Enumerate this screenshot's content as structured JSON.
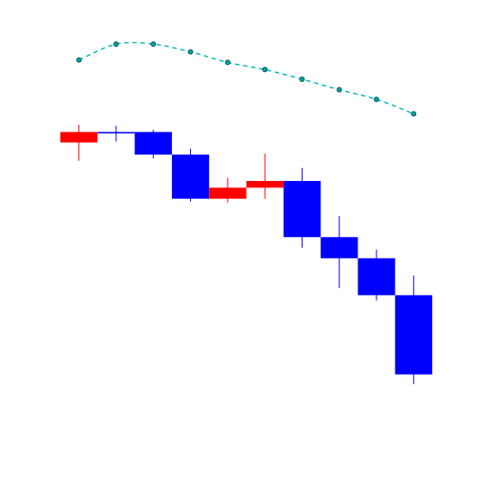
{
  "chart_data": {
    "type": "candlestick",
    "title": "",
    "xlabel": "",
    "ylabel": "",
    "axes_visible": false,
    "grid": false,
    "ylim": [
      0,
      100
    ],
    "colors": {
      "up": "#ff0000",
      "down": "#0000ff",
      "overlay_line": "#00b3b3",
      "overlay_marker_fill": "#00a0a0",
      "overlay_marker_edge": "#004d4d"
    },
    "candles": [
      {
        "open": 70.3,
        "close": 72.5,
        "high": 74.0,
        "low": 66.5
      },
      {
        "open": 72.5,
        "close": 72.2,
        "high": 73.8,
        "low": 70.5
      },
      {
        "open": 72.5,
        "close": 67.8,
        "high": 73.0,
        "low": 67.0
      },
      {
        "open": 67.8,
        "close": 58.6,
        "high": 69.0,
        "low": 58.0
      },
      {
        "open": 58.6,
        "close": 60.9,
        "high": 63.0,
        "low": 57.8
      },
      {
        "open": 60.9,
        "close": 62.3,
        "high": 68.0,
        "low": 58.6
      },
      {
        "open": 62.3,
        "close": 50.6,
        "high": 65.0,
        "low": 48.4
      },
      {
        "open": 50.6,
        "close": 46.2,
        "high": 55.0,
        "low": 40.0
      },
      {
        "open": 46.2,
        "close": 38.5,
        "high": 48.0,
        "low": 37.4
      },
      {
        "open": 38.5,
        "close": 22.0,
        "high": 42.6,
        "low": 20.0
      }
    ],
    "series": [
      {
        "name": "overlay",
        "style": "dashed-line-with-markers",
        "values": [
          87.5,
          90.8,
          90.8,
          89.2,
          87.0,
          85.5,
          83.5,
          81.3,
          79.3,
          76.3
        ]
      }
    ]
  }
}
